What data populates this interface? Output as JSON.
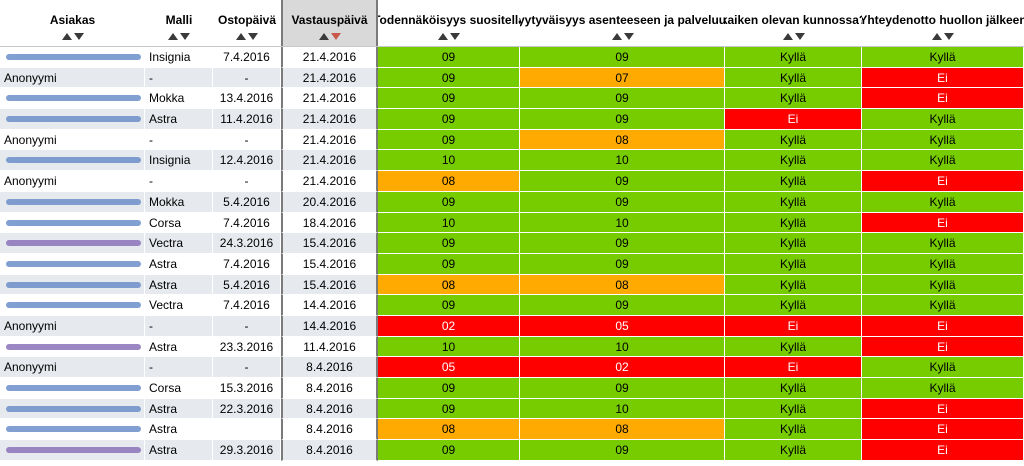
{
  "colors": {
    "green": "#77cc00",
    "orange": "#ffaa00",
    "red": "#ff0000",
    "sorted_header": "#d9d9d9",
    "alt_row": "#e6e9ee"
  },
  "headers": [
    {
      "key": "asiakas",
      "label": "Asiakas"
    },
    {
      "key": "malli",
      "label": "Malli"
    },
    {
      "key": "ostopaiva",
      "label": "Ostopäivä"
    },
    {
      "key": "vastauspaiva",
      "label": "Vastauspäivä"
    },
    {
      "key": "todennakoisyys",
      "label": "Todennäköisyys suositella"
    },
    {
      "key": "tyytyvaisyys",
      "label": "Tyytyväisyys asenteeseen ja palveluun"
    },
    {
      "key": "kunnossa",
      "label": "kaiken olevan kunnossa?"
    },
    {
      "key": "yhteydenotto",
      "label": "Yhteydenotto huollon jälkeen"
    }
  ],
  "sort": {
    "column": "vastauspaiva",
    "direction": "descending"
  },
  "rows": [
    {
      "asiakas": "",
      "redacted": true,
      "malli": "Insignia",
      "ostopaiva": "7.4.2016",
      "vastauspaiva": "21.4.2016",
      "t": "09",
      "tc": "g",
      "y": "09",
      "yc": "g",
      "k": "Kyllä",
      "kc": "g",
      "h": "Kyllä",
      "hc": "g"
    },
    {
      "asiakas": "Anonyymi",
      "redacted": false,
      "malli": "-",
      "ostopaiva": "-",
      "vastauspaiva": "21.4.2016",
      "t": "09",
      "tc": "g",
      "y": "07",
      "yc": "o",
      "k": "Kyllä",
      "kc": "g",
      "h": "Ei",
      "hc": "r"
    },
    {
      "asiakas": "",
      "redacted": true,
      "malli": "Mokka",
      "ostopaiva": "13.4.2016",
      "vastauspaiva": "21.4.2016",
      "t": "09",
      "tc": "g",
      "y": "09",
      "yc": "g",
      "k": "Kyllä",
      "kc": "g",
      "h": "Ei",
      "hc": "r"
    },
    {
      "asiakas": "",
      "redacted": true,
      "malli": "Astra",
      "ostopaiva": "11.4.2016",
      "vastauspaiva": "21.4.2016",
      "t": "09",
      "tc": "g",
      "y": "09",
      "yc": "g",
      "k": "Ei",
      "kc": "r",
      "h": "Kyllä",
      "hc": "g"
    },
    {
      "asiakas": "Anonyymi",
      "redacted": false,
      "malli": "-",
      "ostopaiva": "-",
      "vastauspaiva": "21.4.2016",
      "t": "09",
      "tc": "g",
      "y": "08",
      "yc": "o",
      "k": "Kyllä",
      "kc": "g",
      "h": "Kyllä",
      "hc": "g"
    },
    {
      "asiakas": "",
      "redacted": true,
      "malli": "Insignia",
      "ostopaiva": "12.4.2016",
      "vastauspaiva": "21.4.2016",
      "t": "10",
      "tc": "g",
      "y": "10",
      "yc": "g",
      "k": "Kyllä",
      "kc": "g",
      "h": "Kyllä",
      "hc": "g"
    },
    {
      "asiakas": "Anonyymi",
      "redacted": false,
      "malli": "-",
      "ostopaiva": "-",
      "vastauspaiva": "21.4.2016",
      "t": "08",
      "tc": "o",
      "y": "09",
      "yc": "g",
      "k": "Kyllä",
      "kc": "g",
      "h": "Ei",
      "hc": "r"
    },
    {
      "asiakas": "",
      "redacted": true,
      "malli": "Mokka",
      "ostopaiva": "5.4.2016",
      "vastauspaiva": "20.4.2016",
      "t": "09",
      "tc": "g",
      "y": "09",
      "yc": "g",
      "k": "Kyllä",
      "kc": "g",
      "h": "Kyllä",
      "hc": "g"
    },
    {
      "asiakas": "",
      "redacted": true,
      "malli": "Corsa",
      "ostopaiva": "7.4.2016",
      "vastauspaiva": "18.4.2016",
      "t": "10",
      "tc": "g",
      "y": "10",
      "yc": "g",
      "k": "Kyllä",
      "kc": "g",
      "h": "Ei",
      "hc": "r"
    },
    {
      "asiakas": "",
      "redacted": true,
      "malli": "Vectra",
      "ostopaiva": "24.3.2016",
      "vastauspaiva": "15.4.2016",
      "t": "09",
      "tc": "g",
      "y": "09",
      "yc": "g",
      "k": "Kyllä",
      "kc": "g",
      "h": "Kyllä",
      "hc": "g"
    },
    {
      "asiakas": "",
      "redacted": true,
      "malli": "Astra",
      "ostopaiva": "7.4.2016",
      "vastauspaiva": "15.4.2016",
      "t": "09",
      "tc": "g",
      "y": "09",
      "yc": "g",
      "k": "Kyllä",
      "kc": "g",
      "h": "Kyllä",
      "hc": "g"
    },
    {
      "asiakas": "",
      "redacted": true,
      "malli": "Astra",
      "ostopaiva": "5.4.2016",
      "vastauspaiva": "15.4.2016",
      "t": "08",
      "tc": "o",
      "y": "08",
      "yc": "o",
      "k": "Kyllä",
      "kc": "g",
      "h": "Kyllä",
      "hc": "g"
    },
    {
      "asiakas": "",
      "redacted": true,
      "malli": "Vectra",
      "ostopaiva": "7.4.2016",
      "vastauspaiva": "14.4.2016",
      "t": "09",
      "tc": "g",
      "y": "09",
      "yc": "g",
      "k": "Kyllä",
      "kc": "g",
      "h": "Kyllä",
      "hc": "g"
    },
    {
      "asiakas": "Anonyymi",
      "redacted": false,
      "malli": "-",
      "ostopaiva": "-",
      "vastauspaiva": "14.4.2016",
      "t": "02",
      "tc": "r",
      "y": "05",
      "yc": "r",
      "k": "Ei",
      "kc": "r",
      "h": "Ei",
      "hc": "r"
    },
    {
      "asiakas": "",
      "redacted": true,
      "malli": "Astra",
      "ostopaiva": "23.3.2016",
      "vastauspaiva": "11.4.2016",
      "t": "10",
      "tc": "g",
      "y": "10",
      "yc": "g",
      "k": "Kyllä",
      "kc": "g",
      "h": "Ei",
      "hc": "r"
    },
    {
      "asiakas": "Anonyymi",
      "redacted": false,
      "malli": "-",
      "ostopaiva": "-",
      "vastauspaiva": "8.4.2016",
      "t": "05",
      "tc": "r",
      "y": "02",
      "yc": "r",
      "k": "Ei",
      "kc": "r",
      "h": "Kyllä",
      "hc": "g"
    },
    {
      "asiakas": "",
      "redacted": true,
      "malli": "Corsa",
      "ostopaiva": "15.3.2016",
      "vastauspaiva": "8.4.2016",
      "t": "09",
      "tc": "g",
      "y": "09",
      "yc": "g",
      "k": "Kyllä",
      "kc": "g",
      "h": "Kyllä",
      "hc": "g"
    },
    {
      "asiakas": "",
      "redacted": true,
      "malli": "Astra",
      "ostopaiva": "22.3.2016",
      "vastauspaiva": "8.4.2016",
      "t": "09",
      "tc": "g",
      "y": "10",
      "yc": "g",
      "k": "Kyllä",
      "kc": "g",
      "h": "Ei",
      "hc": "r"
    },
    {
      "asiakas": "",
      "redacted": true,
      "malli": "Astra",
      "ostopaiva": "",
      "vastauspaiva": "8.4.2016",
      "t": "08",
      "tc": "o",
      "y": "08",
      "yc": "o",
      "k": "Kyllä",
      "kc": "g",
      "h": "Ei",
      "hc": "r"
    },
    {
      "asiakas": "",
      "redacted": true,
      "malli": "Astra",
      "ostopaiva": "29.3.2016",
      "vastauspaiva": "8.4.2016",
      "t": "09",
      "tc": "g",
      "y": "09",
      "yc": "g",
      "k": "Kyllä",
      "kc": "g",
      "h": "Ei",
      "hc": "r"
    }
  ]
}
